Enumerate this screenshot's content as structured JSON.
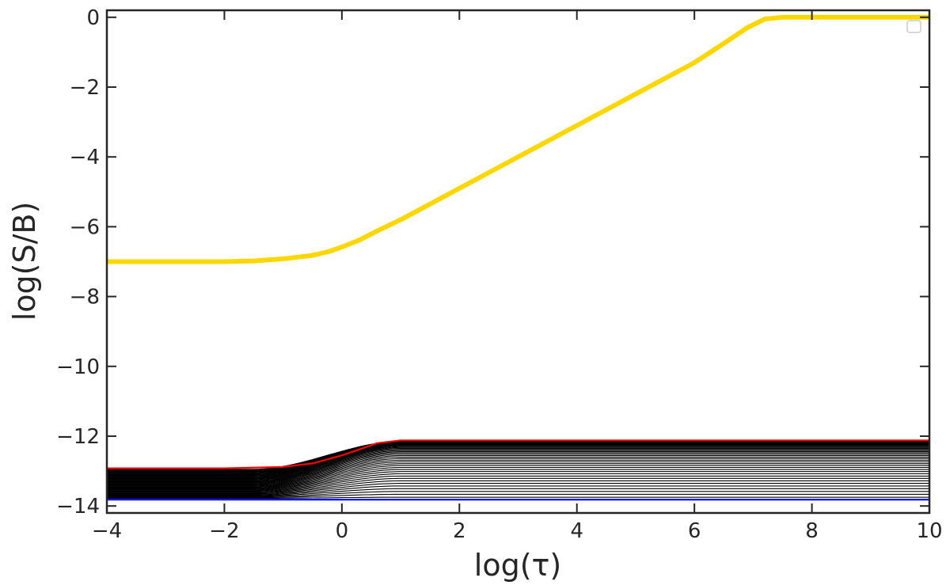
{
  "chart_data": {
    "type": "line",
    "xlabel": "log(τ)",
    "ylabel": "log(S/B)",
    "xlim": [
      -4,
      10
    ],
    "ylim": [
      -14.2,
      0.2
    ],
    "x_ticks": [
      -4,
      -2,
      0,
      2,
      4,
      6,
      8,
      10
    ],
    "y_ticks": [
      0,
      -2,
      -4,
      -6,
      -8,
      -10,
      -12,
      -14
    ],
    "x_tick_labels": [
      "−4",
      "−2",
      "0",
      "2",
      "4",
      "6",
      "8",
      "10"
    ],
    "y_tick_labels": [
      "0",
      "−2",
      "−4",
      "−6",
      "−8",
      "−10",
      "−12",
      "−14"
    ],
    "grid": false,
    "legend": {
      "position": "top-right",
      "entries": []
    },
    "series": [
      {
        "color": "#FFD700",
        "points": [
          [
            -4,
            -7.0
          ],
          [
            -2,
            -7.0
          ],
          [
            -1.5,
            -6.98
          ],
          [
            -1,
            -6.92
          ],
          [
            -0.5,
            -6.82
          ],
          [
            -0.2,
            -6.7
          ],
          [
            0,
            -6.58
          ],
          [
            0.3,
            -6.38
          ],
          [
            0.6,
            -6.12
          ],
          [
            1,
            -5.8
          ],
          [
            2,
            -4.9
          ],
          [
            3,
            -4.0
          ],
          [
            4,
            -3.1
          ],
          [
            5,
            -2.2
          ],
          [
            6,
            -1.3
          ],
          [
            6.5,
            -0.75
          ],
          [
            6.9,
            -0.3
          ],
          [
            7.2,
            -0.05
          ],
          [
            7.5,
            0.0
          ],
          [
            10,
            0.0
          ]
        ]
      },
      {
        "color": "#FF0000",
        "points": [
          [
            -4,
            -12.92
          ],
          [
            -2,
            -12.92
          ],
          [
            -1,
            -12.88
          ],
          [
            -0.5,
            -12.78
          ],
          [
            0,
            -12.55
          ],
          [
            0.3,
            -12.38
          ],
          [
            0.6,
            -12.2
          ],
          [
            1,
            -12.12
          ],
          [
            10,
            -12.12
          ]
        ]
      },
      {
        "color": "#000000",
        "family": {
          "count": 42,
          "left_top": -12.95,
          "left_bottom": -13.78,
          "right_top": -12.15,
          "right_bottom": -13.75
        }
      },
      {
        "color": "#0000FF",
        "points": [
          [
            -4,
            -13.82
          ],
          [
            10,
            -13.82
          ]
        ]
      }
    ]
  }
}
